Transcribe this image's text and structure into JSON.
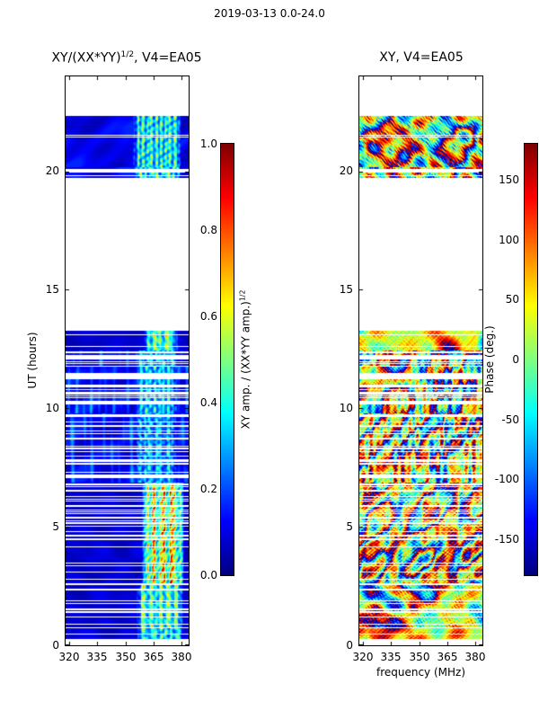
{
  "figure": {
    "title": "2019-03-13 0.0-24.0",
    "background": "#ffffff",
    "axis_color": "#000000"
  },
  "left_panel": {
    "title_pre": "XY/(XX*YY)",
    "title_sup": "1/2",
    "title_post": ", V4=EA05",
    "ylabel": "UT (hours)",
    "yticks": [
      "0",
      "5",
      "10",
      "15",
      "20"
    ],
    "xticks": [
      "320",
      "335",
      "350",
      "365",
      "380"
    ]
  },
  "left_colorbar": {
    "ticks_top_to_bottom": [
      "1.0",
      "0.8",
      "0.6",
      "0.4",
      "0.2",
      "0.0"
    ],
    "label_pre": "XY amp. / (XX*YY amp.)",
    "label_sup": "1/2"
  },
  "right_panel": {
    "title": "XY, V4=EA05",
    "xlabel": "frequency (MHz)",
    "yticks": [
      "0",
      "5",
      "10",
      "15",
      "20"
    ],
    "xticks": [
      "320",
      "335",
      "350",
      "365",
      "380"
    ]
  },
  "right_colorbar": {
    "ticks_top_to_bottom": [
      "150",
      "100",
      "50",
      "0",
      "-50",
      "-100",
      "-150"
    ],
    "label": "Phase (deg.)"
  },
  "chart_data": [
    {
      "type": "heatmap",
      "title": "XY/(XX*YY)^(1/2), V4=EA05",
      "date_label": "2019-03-13 0.0-24.0",
      "xlabel": "frequency (MHz)",
      "ylabel": "UT (hours)",
      "xlim": [
        318.2,
        383.6
      ],
      "ylim": [
        0,
        24
      ],
      "xticks": [
        320,
        335,
        350,
        365,
        380
      ],
      "yticks": [
        0,
        5,
        10,
        15,
        20
      ],
      "colormap": "jet",
      "grid": false,
      "colorbar": {
        "label": "XY amp. / (XX*YY amp.)^(1/2)",
        "range": [
          0.0,
          1.0
        ],
        "ticks": [
          0.0,
          0.2,
          0.4,
          0.6,
          0.8,
          1.0
        ]
      },
      "no_data_time_ranges": [
        [
          0.0,
          0.3
        ],
        [
          13.3,
          19.75
        ],
        [
          22.35,
          24.0
        ]
      ],
      "segments": [
        {
          "t": [
            0.3,
            0.75
          ],
          "gap": 0.1,
          "base": 0.05,
          "texture": 0.06,
          "band": [
            357,
            380
          ],
          "band_v": [
            0.3,
            0.6
          ],
          "description": "dark blue background (ratio ~0.05) with cyan patches 357-380 MHz"
        },
        {
          "t": [
            0.75,
            2.6
          ],
          "gap": 0.25,
          "base": 0.05,
          "texture": 0.06,
          "band": [
            357,
            380
          ],
          "band_v": [
            0.35,
            0.7
          ],
          "description": "dark blue, many white dropout rows, cyan/green band at high frequency"
        },
        {
          "t": [
            2.6,
            6.9
          ],
          "gap": 0.3,
          "base": 0.05,
          "texture": 0.06,
          "band": [
            360,
            380
          ],
          "band_v": [
            0.45,
            0.95
          ],
          "description": "dark blue with strong yellow/orange/red RFI speckle 360-380 MHz"
        },
        {
          "t": [
            6.9,
            9.8
          ],
          "gap": 0.26,
          "base": 0.06,
          "texture": 0.1,
          "stripes": 0.1,
          "band": [
            356,
            377
          ],
          "band_v": [
            0.2,
            0.5
          ],
          "description": "blue with lighter vertical stripes, cyan band 356-377 MHz"
        },
        {
          "t": [
            9.8,
            11.8
          ],
          "gap": 0.38,
          "base": 0.06,
          "texture": 0.1,
          "stripes": 0.12,
          "band": [
            356,
            377
          ],
          "band_v": [
            0.25,
            0.55
          ],
          "description": "blue rows with frequent white gaps, bright cyan columns near 365 MHz"
        },
        {
          "t": [
            11.8,
            12.45
          ],
          "gap": 0.55,
          "base": 0.06,
          "texture": 0.08,
          "stripes": 0.1,
          "band": [
            356,
            377
          ],
          "band_v": [
            0.25,
            0.55
          ],
          "description": "mostly white with sparse blue rows and cyan stripes"
        },
        {
          "t": [
            12.45,
            13.3
          ],
          "gap": 0.05,
          "base": 0.05,
          "texture": 0.05,
          "band": [
            361,
            377
          ],
          "band_v": [
            0.4,
            0.7
          ],
          "description": "solid dark blue band with green/cyan stripes 361-377 MHz"
        },
        {
          "t": [
            19.75,
            20.2
          ],
          "gap": 0.3,
          "base": 0.06,
          "texture": 0.1,
          "band": [
            355,
            379
          ],
          "band_v": [
            0.3,
            0.65
          ],
          "description": "blue rows with several white gaps, cyan patches at high frequency"
        },
        {
          "t": [
            20.2,
            22.35
          ],
          "gap": 0.08,
          "base": 0.06,
          "texture": 0.1,
          "band": [
            355,
            379
          ],
          "band_v": [
            0.3,
            0.65
          ],
          "description": "solid dark blue block with cyan/green blobs 355-379 MHz"
        }
      ]
    },
    {
      "type": "heatmap",
      "title": "XY, V4=EA05",
      "date_label": "2019-03-13 0.0-24.0",
      "xlabel": "frequency (MHz)",
      "ylabel": "UT (hours)",
      "xlim": [
        318.2,
        383.6
      ],
      "ylim": [
        0,
        24
      ],
      "xticks": [
        320,
        335,
        350,
        365,
        380
      ],
      "yticks": [
        0,
        5,
        10,
        15,
        20
      ],
      "colormap": "jet",
      "grid": false,
      "colorbar": {
        "label": "Phase (deg.)",
        "range": [
          -180,
          180
        ],
        "ticks": [
          -150,
          -100,
          -50,
          0,
          50,
          100,
          150
        ]
      },
      "no_data_time_ranges": [
        [
          0.0,
          0.3
        ],
        [
          13.3,
          19.75
        ],
        [
          22.35,
          24.0
        ]
      ],
      "segments": [
        {
          "t": [
            0.3,
            0.75
          ],
          "gap": 0.1,
          "base": 40,
          "namp": 70,
          "speckle": 40,
          "blob": 160,
          "pband": [
            322,
            348
          ],
          "pshift": 90,
          "description": "yellow-green phase noise with red/orange blobs at low frequency"
        },
        {
          "t": [
            0.75,
            2.6
          ],
          "gap": 0.25,
          "base": 45,
          "namp": 80,
          "speckle": 50,
          "blob": 170,
          "pband": [
            324,
            350
          ],
          "pshift": 85,
          "description": "yellow/green speckle, red-orange patches 324-350 MHz, white dropout rows"
        },
        {
          "t": [
            2.6,
            6.9
          ],
          "gap": 0.3,
          "base": 45,
          "namp": 85,
          "speckle": 60,
          "vstripe": 40,
          "blob": 160,
          "pband": [
            352,
            372
          ],
          "pshift": 60,
          "description": "green/yellow speckle with red streaks near 352-372 MHz and cyan patches"
        },
        {
          "t": [
            6.9,
            9.8
          ],
          "gap": 0.26,
          "base": 40,
          "namp": 90,
          "speckle": 50,
          "vstripe": 70,
          "blob": 150,
          "pband": [
            353,
            369
          ],
          "pshift": -110,
          "description": "mixed yellow/red columns with blue/cyan vertical band 353-369 MHz"
        },
        {
          "t": [
            9.8,
            11.8
          ],
          "gap": 0.38,
          "base": 40,
          "namp": 90,
          "speckle": 50,
          "vstripe": 70,
          "blob": 150,
          "pband": [
            353,
            369
          ],
          "pshift": -110,
          "description": "frequent white gaps; red and blue vertical streaks mid-band"
        },
        {
          "t": [
            11.8,
            12.45
          ],
          "gap": 0.55,
          "base": 40,
          "namp": 85,
          "speckle": 50,
          "vstripe": 60,
          "blob": 140,
          "pband": [
            353,
            369
          ],
          "pshift": -100,
          "description": "mostly white with sparse colorful rows"
        },
        {
          "t": [
            12.45,
            13.3
          ],
          "gap": 0.05,
          "base": 45,
          "namp": 40,
          "speckle": 35,
          "blob": 120,
          "description": "solid yellow-green band with orange speckle"
        },
        {
          "t": [
            19.75,
            20.2
          ],
          "gap": 0.3,
          "base": 30,
          "namp": 100,
          "speckle": 60,
          "blob": 170,
          "pband": [
            320,
            345
          ],
          "pshift": 60,
          "description": "dense multicolor phase speckle with white gap rows"
        },
        {
          "t": [
            20.2,
            22.35
          ],
          "gap": 0.08,
          "base": 30,
          "namp": 110,
          "speckle": 70,
          "blob": 170,
          "pband": [
            320,
            345
          ],
          "pshift": 60,
          "description": "dense red/orange/cyan/blue phase blobs across whole band"
        }
      ]
    }
  ]
}
